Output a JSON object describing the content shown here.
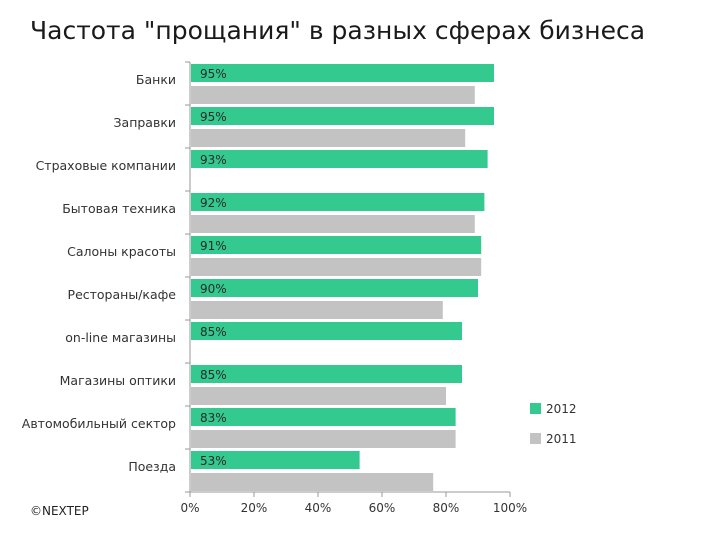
{
  "title": "Частота \"прощания\" в разных сферах бизнеса",
  "footer": "©NEXTEP",
  "colors": {
    "series_2012": "#33c98f",
    "series_2011": "#c3c3c3",
    "axis": "#999999"
  },
  "chart_data": {
    "type": "bar",
    "orientation": "horizontal",
    "title": "Частота \"прощания\" в разных сферах бизнеса",
    "categories": [
      "Банки",
      "Заправки",
      "Страховые компании",
      "Бытовая техника",
      "Салоны красоты",
      "Рестораны/кафе",
      "on-line магазины",
      "Магазины оптики",
      "Автомобильный сектор",
      "Поезда"
    ],
    "series": [
      {
        "name": "2012",
        "values": [
          95,
          95,
          93,
          92,
          91,
          90,
          85,
          85,
          83,
          53
        ],
        "labels": [
          "95%",
          "95%",
          "93%",
          "92%",
          "91%",
          "90%",
          "85%",
          "85%",
          "83%",
          "53%"
        ]
      },
      {
        "name": "2011",
        "values": [
          89,
          86,
          null,
          89,
          91,
          79,
          null,
          80,
          83,
          76
        ],
        "labels": []
      }
    ],
    "xlim": [
      0,
      100
    ],
    "x_ticks": [
      "0%",
      "20%",
      "40%",
      "60%",
      "80%",
      "100%"
    ],
    "legend_position": "right",
    "grid": false
  }
}
